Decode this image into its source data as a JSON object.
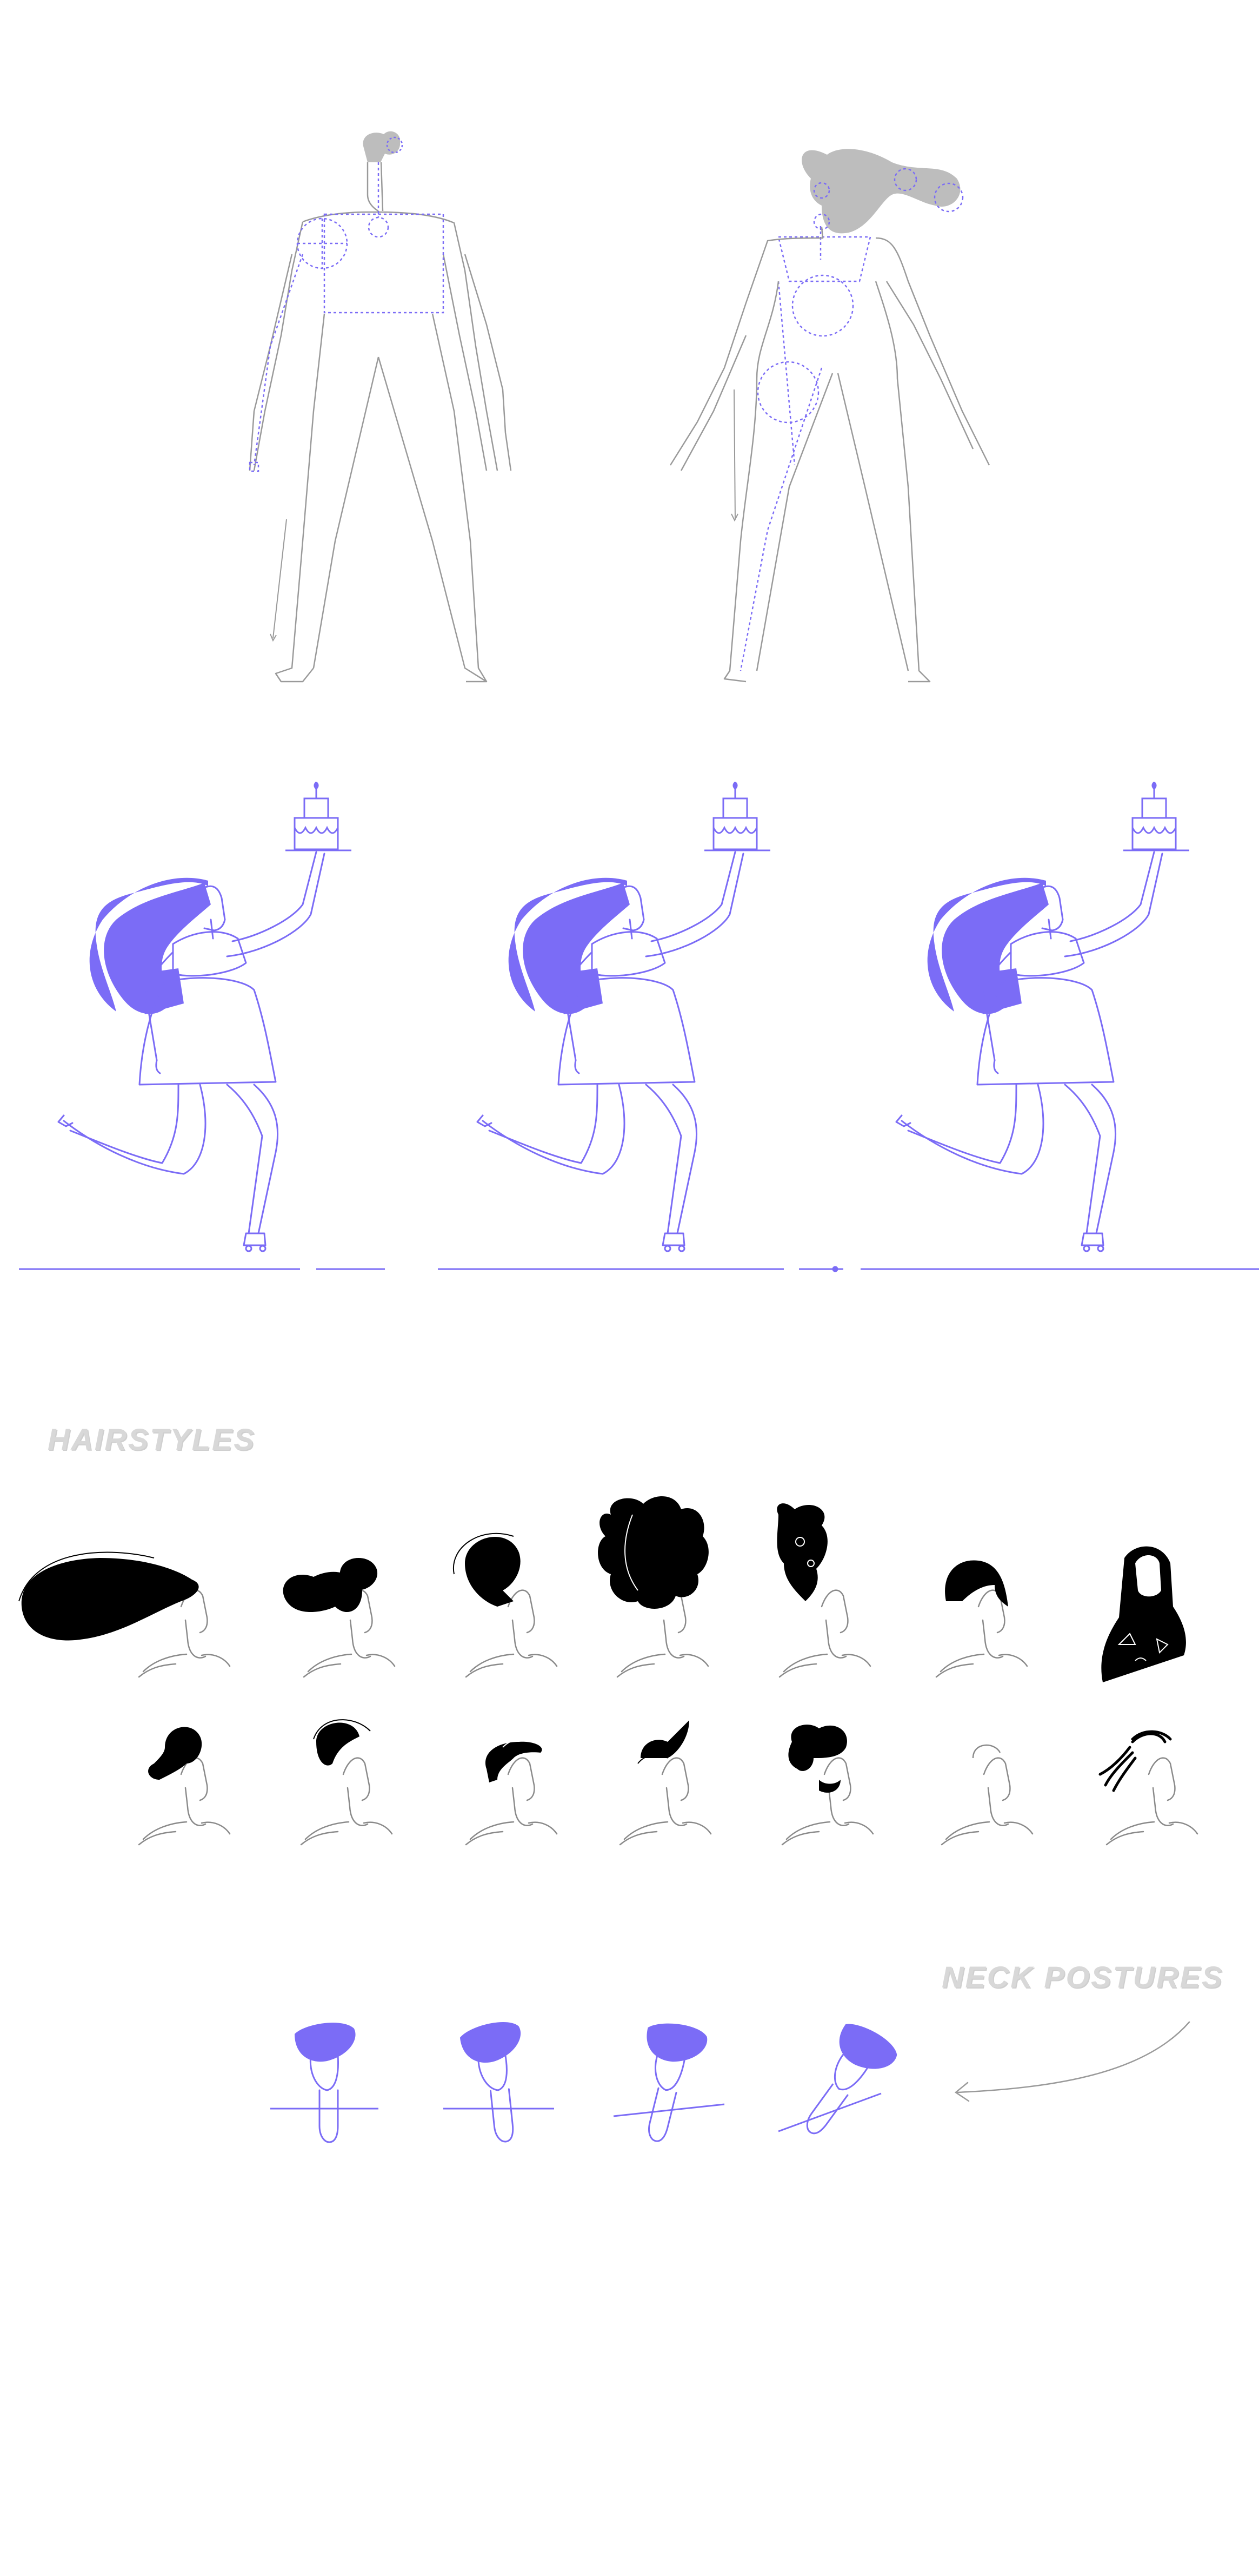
{
  "labels": {
    "hairstyles": "HAIRSTYLES",
    "neck_postures": "NECK POSTURES"
  },
  "colors": {
    "accent": "#7b6cf6",
    "outline": "#9a9a9a",
    "hair_gray": "#bdbdbd",
    "hair_black": "#000000",
    "label": "#d8d8d8"
  },
  "sections": {
    "body_proportions": {
      "figures": [
        "male-figure",
        "female-figure"
      ]
    },
    "skater_poses": {
      "count": 3,
      "prop": "cake-on-tray"
    },
    "hairstyles": {
      "rows": 2,
      "per_row": 7
    },
    "neck_postures": {
      "count": 4
    }
  }
}
